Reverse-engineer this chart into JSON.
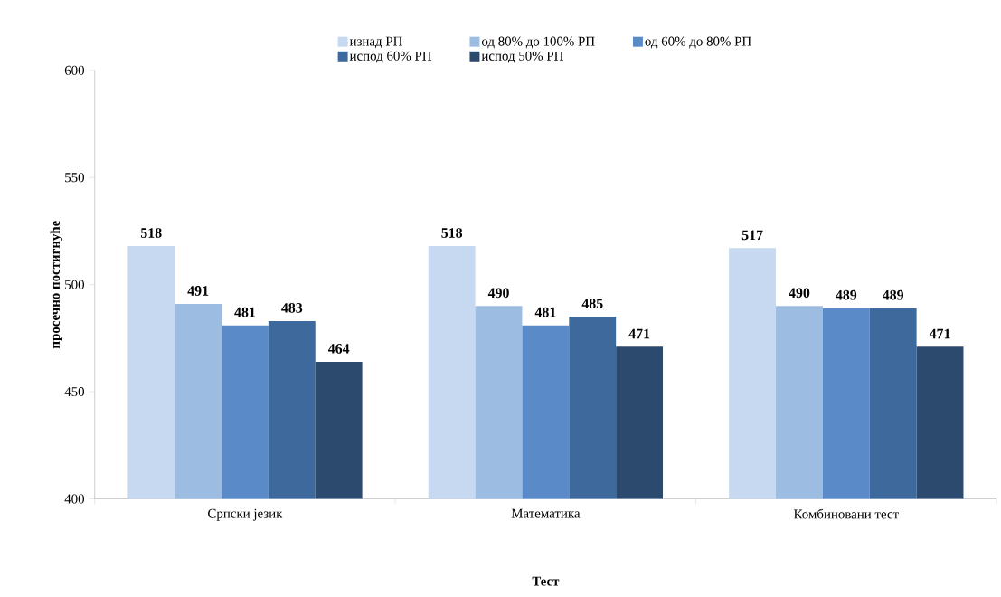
{
  "chart_data": {
    "type": "bar",
    "xlabel": "Тест",
    "ylabel": "просечно постигнуће",
    "categories": [
      "Српски језик",
      "Математика",
      "Комбиновани тест"
    ],
    "series": [
      {
        "name": "изнад РП",
        "color": "#c6d9f0",
        "values": [
          518,
          518,
          517
        ]
      },
      {
        "name": "од 80% до 100% РП",
        "color": "#9dbce2",
        "values": [
          491,
          490,
          490
        ]
      },
      {
        "name": "од 60% до 80% РП",
        "color": "#5a8ac8",
        "values": [
          481,
          481,
          489
        ]
      },
      {
        "name": "испод 60% РП",
        "color": "#3e699c",
        "values": [
          483,
          485,
          489
        ]
      },
      {
        "name": "испод 50% РП",
        "color": "#2c4a6e",
        "values": [
          464,
          471,
          471
        ]
      }
    ],
    "ylim": [
      400,
      600
    ],
    "yticks": [
      400,
      450,
      500,
      550,
      600
    ],
    "data_labels": true,
    "legend": "top",
    "grid": false
  }
}
